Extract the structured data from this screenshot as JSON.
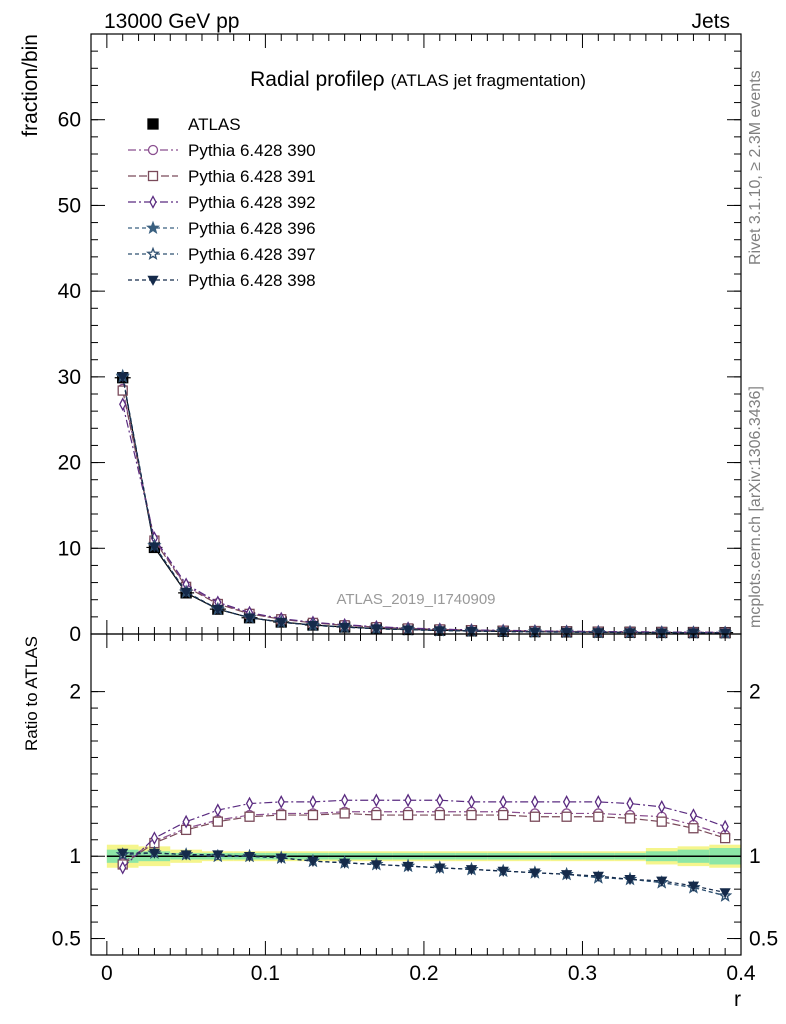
{
  "header": {
    "left": "13000 GeV pp",
    "right": "Jets",
    "watermark": "ATLAS_2019_I1740909",
    "side_top": "Rivet 3.1.10, ≥ 2.3M events",
    "side_bottom": "mcplots.cern.ch [arXiv:1306.3436]"
  },
  "chart_data": [
    {
      "type": "line",
      "title": "Radial profile",
      "title_symbol": "ρ",
      "subtitle": "(ATLAS jet fragmentation)",
      "xlabel": "r",
      "ylabel": "fraction/bin",
      "xlim": [
        -0.01,
        0.4
      ],
      "ylim": [
        0,
        70
      ],
      "yticks": [
        0,
        10,
        20,
        30,
        40,
        50,
        60
      ],
      "legend_position": "top-left",
      "x": [
        0.01,
        0.03,
        0.05,
        0.07,
        0.09,
        0.11,
        0.13,
        0.15,
        0.17,
        0.19,
        0.21,
        0.23,
        0.25,
        0.27,
        0.29,
        0.31,
        0.33,
        0.35,
        0.37,
        0.39
      ],
      "series": [
        {
          "name": "ATLAS",
          "color": "#000000",
          "marker": "square-filled",
          "dash": "",
          "values": [
            29.9,
            10.1,
            4.8,
            2.9,
            1.9,
            1.4,
            1.05,
            0.82,
            0.65,
            0.53,
            0.44,
            0.37,
            0.32,
            0.28,
            0.25,
            0.22,
            0.2,
            0.18,
            0.17,
            0.16
          ]
        },
        {
          "name": "Pythia 6.428 390",
          "color": "#8a4f8f",
          "marker": "circle-open",
          "dash": "8,3,2,3",
          "values": [
            28.6,
            11.0,
            5.6,
            3.6,
            2.4,
            1.74,
            1.31,
            1.03,
            0.81,
            0.66,
            0.55,
            0.46,
            0.4,
            0.35,
            0.31,
            0.27,
            0.25,
            0.22,
            0.2,
            0.18
          ]
        },
        {
          "name": "Pythia 6.428 391",
          "color": "#7a4a5a",
          "marker": "square-open",
          "dash": "8,3",
          "values": [
            28.4,
            10.9,
            5.5,
            3.5,
            2.35,
            1.72,
            1.3,
            1.02,
            0.8,
            0.65,
            0.54,
            0.45,
            0.39,
            0.34,
            0.3,
            0.27,
            0.24,
            0.22,
            0.2,
            0.17
          ]
        },
        {
          "name": "Pythia 6.428 392",
          "color": "#5a2b80",
          "marker": "diamond-open",
          "dash": "8,3,2,3",
          "values": [
            26.8,
            11.2,
            5.8,
            3.7,
            2.5,
            1.8,
            1.37,
            1.08,
            0.85,
            0.69,
            0.57,
            0.48,
            0.42,
            0.37,
            0.32,
            0.29,
            0.26,
            0.23,
            0.21,
            0.19
          ]
        },
        {
          "name": "Pythia 6.428 396",
          "color": "#3a6080",
          "marker": "star-filled",
          "dash": "4,3",
          "values": [
            30.1,
            10.3,
            4.9,
            2.9,
            1.9,
            1.38,
            1.02,
            0.8,
            0.62,
            0.5,
            0.41,
            0.34,
            0.29,
            0.25,
            0.22,
            0.19,
            0.17,
            0.15,
            0.14,
            0.12
          ]
        },
        {
          "name": "Pythia 6.428 397",
          "color": "#2f5070",
          "marker": "star-open",
          "dash": "4,3",
          "values": [
            30.0,
            10.3,
            4.9,
            2.9,
            1.9,
            1.38,
            1.02,
            0.8,
            0.62,
            0.5,
            0.41,
            0.34,
            0.29,
            0.25,
            0.22,
            0.19,
            0.17,
            0.15,
            0.14,
            0.12
          ]
        },
        {
          "name": "Pythia 6.428 398",
          "color": "#152a4a",
          "marker": "triangle-down-filled",
          "dash": "4,3",
          "values": [
            30.0,
            10.2,
            4.9,
            2.9,
            1.9,
            1.38,
            1.02,
            0.8,
            0.62,
            0.5,
            0.41,
            0.34,
            0.29,
            0.25,
            0.22,
            0.19,
            0.17,
            0.15,
            0.14,
            0.12
          ]
        }
      ]
    },
    {
      "type": "line",
      "ylabel": "Ratio to ATLAS",
      "xlabel": "r",
      "xlim": [
        -0.01,
        0.4
      ],
      "ylim": [
        0.4,
        2.35
      ],
      "ytick_labels": [
        "0.5",
        "1",
        "2"
      ],
      "xtick_labels": [
        "0",
        "0.1",
        "0.2",
        "0.3",
        "0.4"
      ],
      "x": [
        0.01,
        0.03,
        0.05,
        0.07,
        0.09,
        0.11,
        0.13,
        0.15,
        0.17,
        0.19,
        0.21,
        0.23,
        0.25,
        0.27,
        0.29,
        0.31,
        0.33,
        0.35,
        0.37,
        0.39
      ],
      "band_inner": [
        0.04,
        0.03,
        0.02,
        0.02,
        0.02,
        0.02,
        0.02,
        0.02,
        0.02,
        0.02,
        0.02,
        0.02,
        0.02,
        0.02,
        0.02,
        0.02,
        0.02,
        0.03,
        0.04,
        0.05
      ],
      "band_outer": [
        0.07,
        0.06,
        0.04,
        0.03,
        0.03,
        0.03,
        0.03,
        0.03,
        0.03,
        0.03,
        0.03,
        0.03,
        0.03,
        0.03,
        0.03,
        0.03,
        0.03,
        0.05,
        0.06,
        0.07
      ],
      "band_colors": {
        "inner": "#8ce6a6",
        "outer": "#f5f58c"
      },
      "series": [
        {
          "name": "Pythia 6.428 390",
          "color": "#8a4f8f",
          "marker": "circle-open",
          "dash": "8,3,2,3",
          "values": [
            0.96,
            1.09,
            1.17,
            1.22,
            1.25,
            1.26,
            1.26,
            1.27,
            1.27,
            1.27,
            1.27,
            1.27,
            1.27,
            1.26,
            1.26,
            1.26,
            1.25,
            1.24,
            1.19,
            1.13
          ]
        },
        {
          "name": "Pythia 6.428 391",
          "color": "#7a4a5a",
          "marker": "square-open",
          "dash": "8,3",
          "values": [
            0.95,
            1.08,
            1.16,
            1.21,
            1.24,
            1.25,
            1.25,
            1.26,
            1.25,
            1.25,
            1.25,
            1.25,
            1.25,
            1.24,
            1.24,
            1.24,
            1.23,
            1.21,
            1.17,
            1.11
          ]
        },
        {
          "name": "Pythia 6.428 392",
          "color": "#5a2b80",
          "marker": "diamond-open",
          "dash": "8,3,2,3",
          "values": [
            0.93,
            1.11,
            1.21,
            1.28,
            1.32,
            1.33,
            1.33,
            1.34,
            1.34,
            1.34,
            1.34,
            1.33,
            1.33,
            1.33,
            1.33,
            1.33,
            1.32,
            1.3,
            1.25,
            1.18
          ]
        },
        {
          "name": "Pythia 6.428 396",
          "color": "#3a6080",
          "marker": "star-filled",
          "dash": "4,3",
          "values": [
            1.01,
            1.02,
            1.01,
            1.0,
            1.0,
            0.99,
            0.97,
            0.96,
            0.95,
            0.94,
            0.93,
            0.92,
            0.91,
            0.9,
            0.89,
            0.87,
            0.86,
            0.84,
            0.81,
            0.76
          ]
        },
        {
          "name": "Pythia 6.428 397",
          "color": "#2f5070",
          "marker": "star-open",
          "dash": "4,3",
          "values": [
            1.01,
            1.02,
            1.01,
            1.0,
            1.0,
            0.99,
            0.97,
            0.96,
            0.95,
            0.94,
            0.93,
            0.92,
            0.91,
            0.9,
            0.89,
            0.87,
            0.86,
            0.84,
            0.81,
            0.76
          ]
        },
        {
          "name": "Pythia 6.428 398",
          "color": "#152a4a",
          "marker": "triangle-down-filled",
          "dash": "4,3",
          "values": [
            1.02,
            1.02,
            1.01,
            1.01,
            1.0,
            0.99,
            0.97,
            0.96,
            0.95,
            0.94,
            0.93,
            0.92,
            0.91,
            0.9,
            0.89,
            0.88,
            0.86,
            0.85,
            0.82,
            0.78
          ]
        }
      ]
    }
  ]
}
